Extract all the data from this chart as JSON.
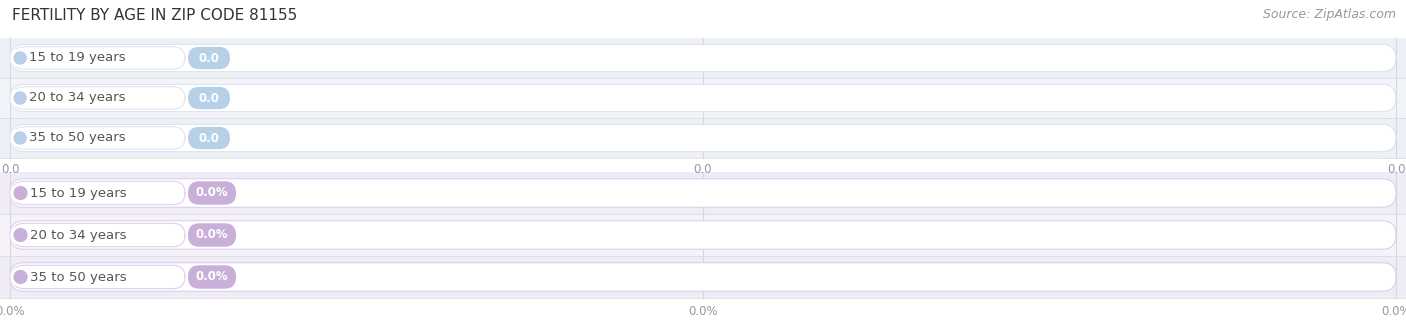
{
  "title": "FERTILITY BY AGE IN ZIP CODE 81155",
  "source": "Source: ZipAtlas.com",
  "categories": [
    "15 to 19 years",
    "20 to 34 years",
    "35 to 50 years"
  ],
  "top_value_labels": [
    "0.0",
    "0.0",
    "0.0"
  ],
  "bottom_value_labels": [
    "0.0%",
    "0.0%",
    "0.0%"
  ],
  "top_axis_ticks": [
    "0.0",
    "0.0",
    "0.0"
  ],
  "bottom_axis_ticks": [
    "0.0%",
    "0.0%",
    "0.0%"
  ],
  "title_fontsize": 11,
  "source_fontsize": 9,
  "label_fontsize": 9.5,
  "value_fontsize": 8.5,
  "tick_fontsize": 8.5,
  "bg_color": "#ffffff",
  "top_circle_color": "#b8cfe8",
  "bottom_circle_color": "#c8b0d8",
  "top_pill_bg": "#f0f4f9",
  "bottom_pill_bg": "#f5f0f8",
  "top_badge_color": "#b8cfe8",
  "bottom_badge_color": "#c8b0d8",
  "top_band_colors": [
    "#edf1f7",
    "#f2f4f9"
  ],
  "bottom_band_colors": [
    "#f0ecf7",
    "#f5f2f9"
  ],
  "bar_bg_color": "#ffffff",
  "bar_edge_top": "#dde5f0",
  "bar_edge_bottom": "#ddd0ea",
  "separator_color": "#d8d8d8",
  "grid_color": "#d8d8d8",
  "text_color": "#555555",
  "tick_color": "#999999",
  "title_color": "#333333",
  "source_color": "#999999"
}
